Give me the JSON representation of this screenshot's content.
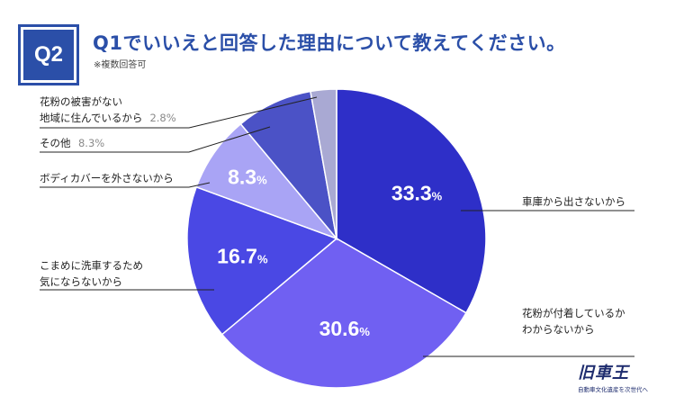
{
  "header": {
    "badge": "Q2",
    "title": "Q1でいいえと回答した理由について教えてください。",
    "note": "※複数回答可"
  },
  "chart_data": {
    "type": "pie",
    "start": "12 o'clock, clockwise",
    "series": [
      {
        "name": "車庫から出さないから",
        "lines": [
          "車庫から出さないから"
        ],
        "value": 33.3,
        "color": "#2e2fc8",
        "label_inside": true
      },
      {
        "name": "花粉が付着しているかわからないから",
        "lines": [
          "花粉が付着しているか",
          "わからないから"
        ],
        "value": 30.6,
        "color": "#7060f2",
        "label_inside": true
      },
      {
        "name": "こまめに洗車するため気にならないから",
        "lines": [
          "こまめに洗車するため",
          "気にならないから"
        ],
        "value": 16.7,
        "color": "#4a48e4",
        "label_inside": true
      },
      {
        "name": "ボディカバーを外さないから",
        "lines": [
          "ボディカバーを外さないから"
        ],
        "value": 8.3,
        "color": "#a9a4f5",
        "label_inside": true
      },
      {
        "name": "その他",
        "lines": [
          "その他"
        ],
        "value": 8.3,
        "color": "#4b52c6",
        "label_inside": false
      },
      {
        "name": "花粉の被害がない地域に住んでいるから",
        "lines": [
          "花粉の被害がない",
          "地域に住んでいるから"
        ],
        "value": 2.8,
        "color": "#a9a9d3",
        "label_inside": false
      }
    ]
  },
  "logo": {
    "main": "旧車王",
    "sub": "自動車文化遺産を次世代へ"
  }
}
